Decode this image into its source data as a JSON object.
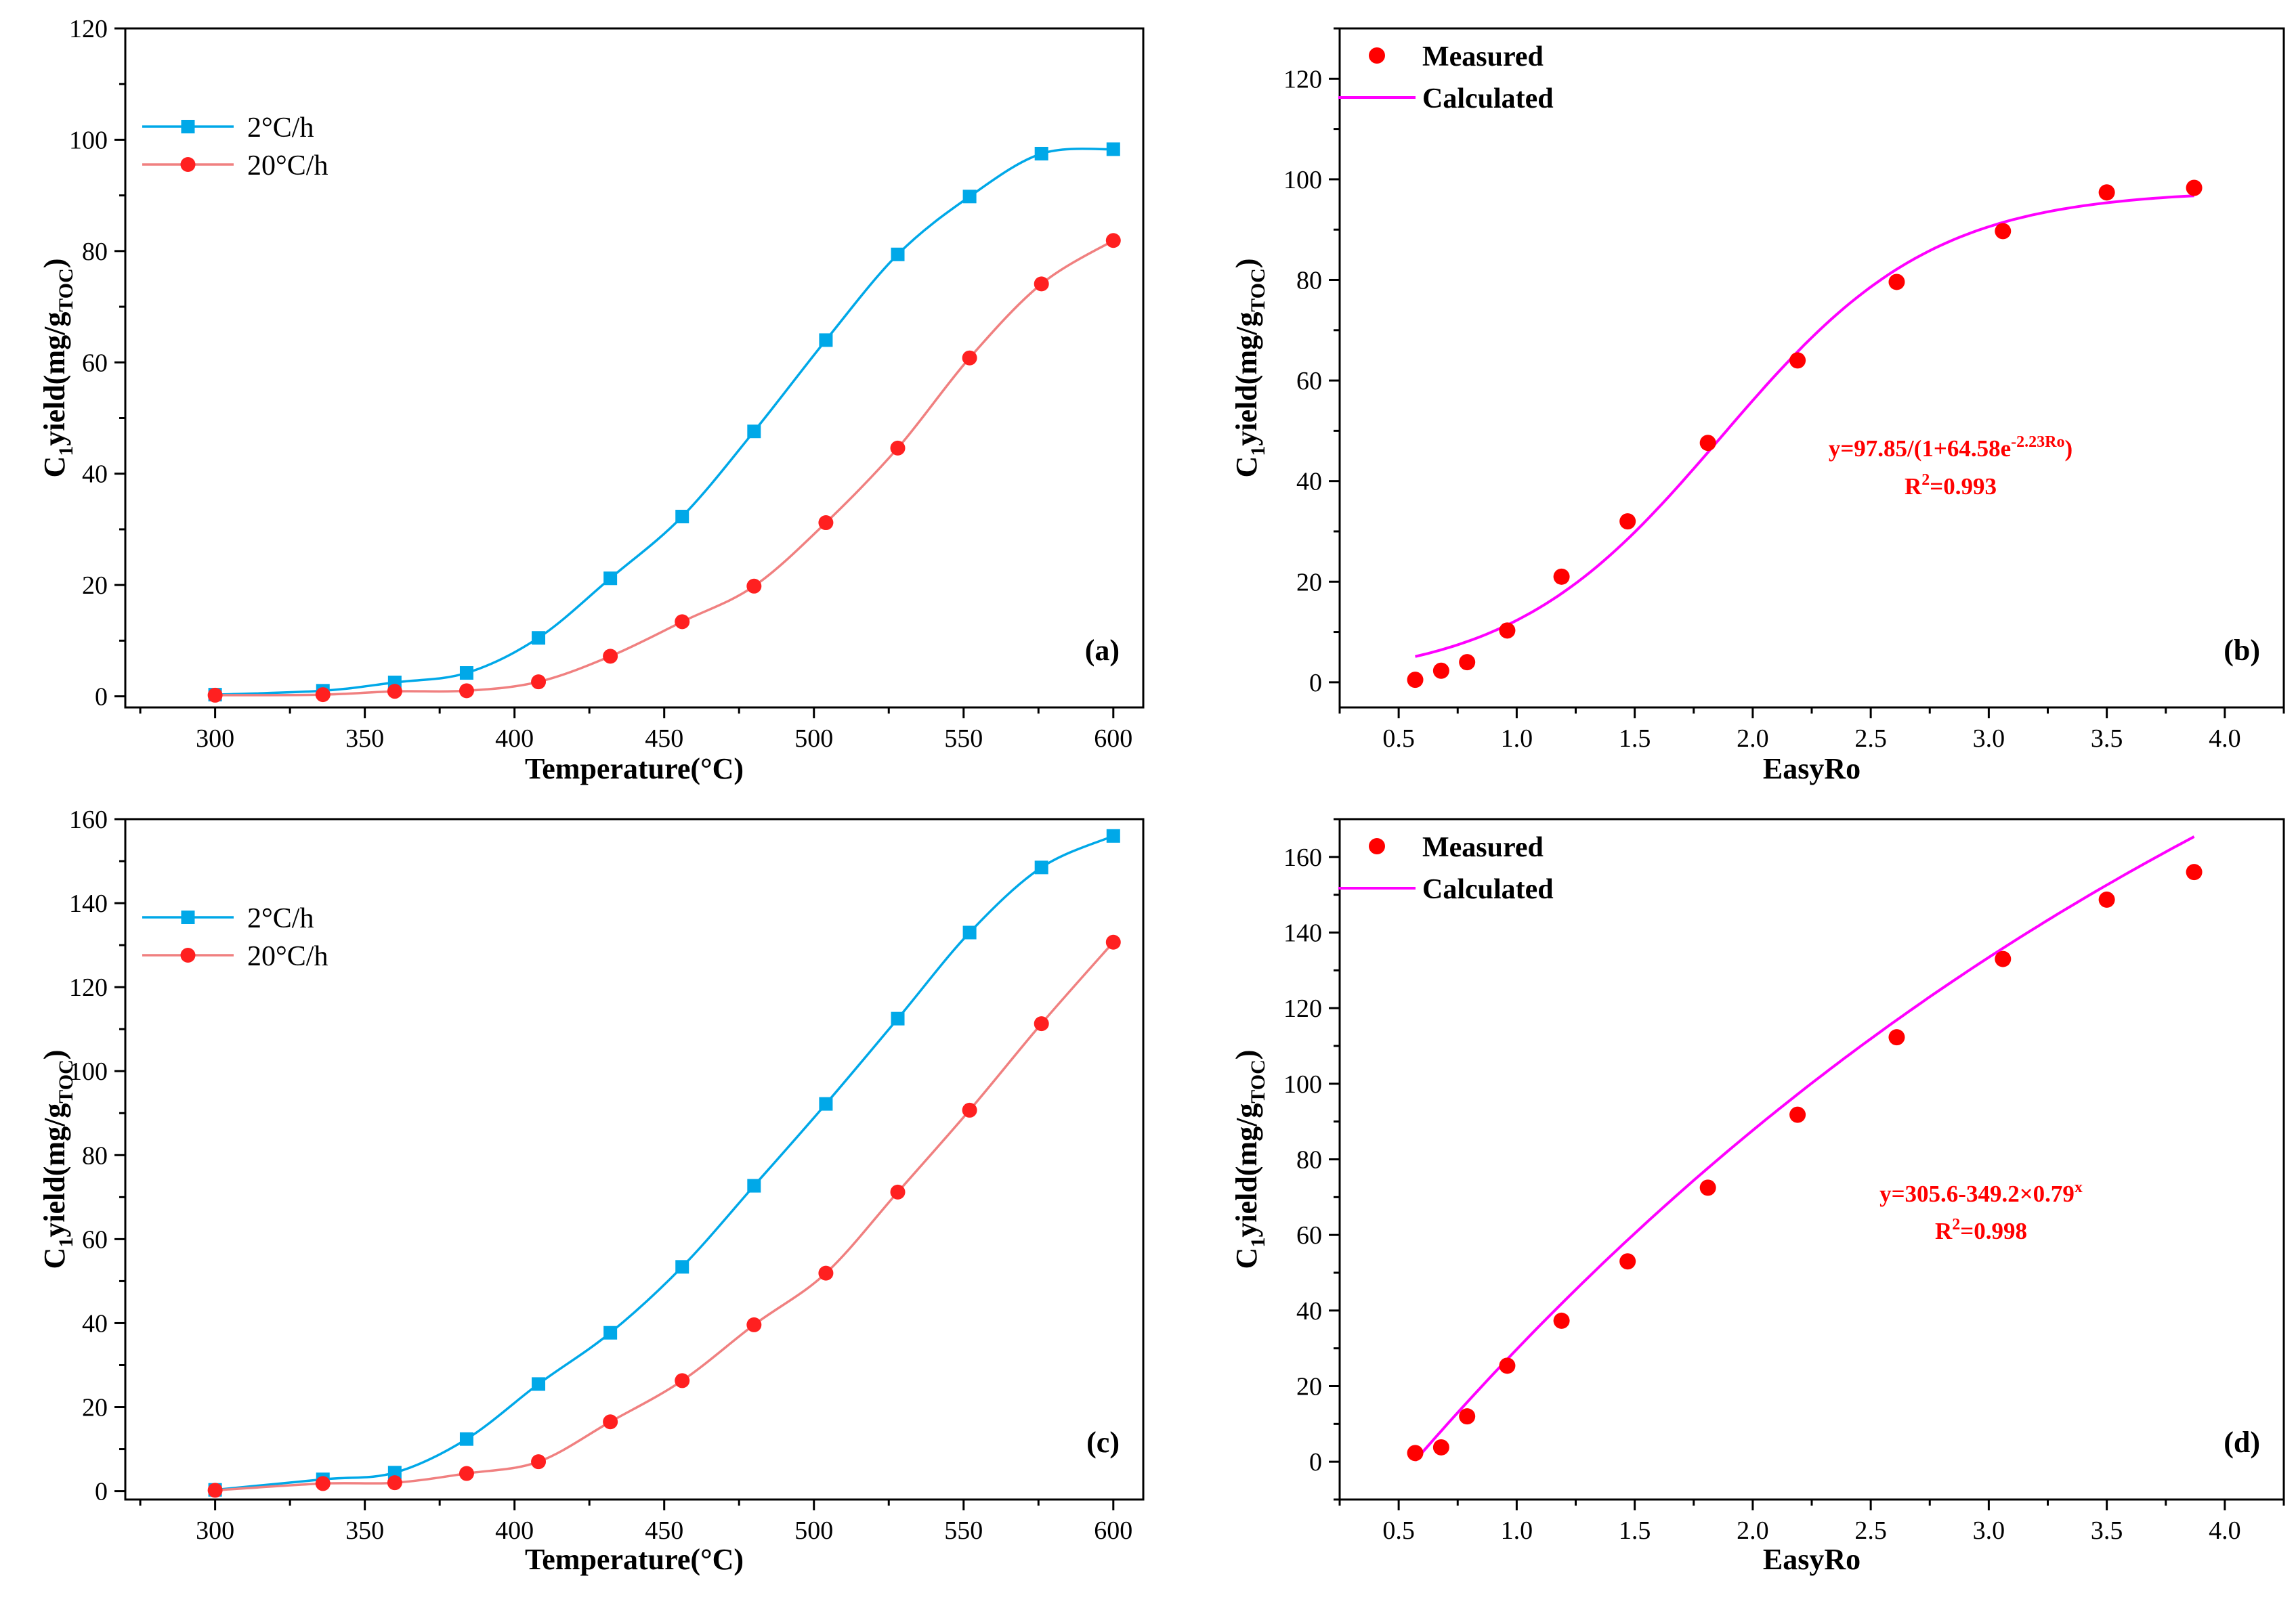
{
  "chart_data": [
    {
      "panel": "(a)",
      "type": "line",
      "xlabel": "Temperature(°C)",
      "ylabel": {
        "main": "C",
        "sub1": "1",
        "mid": "yield(mg/g",
        "sub2": "TOC",
        "end": ")"
      },
      "xlim": [
        270,
        610
      ],
      "ylim": [
        -2,
        120
      ],
      "xticks": [
        300,
        350,
        400,
        450,
        500,
        550,
        600
      ],
      "yticks": [
        0,
        20,
        40,
        60,
        80,
        100,
        120
      ],
      "legend_position": "top-left",
      "series": [
        {
          "name": "2°C/h",
          "color": "#00a8e8",
          "marker": "square",
          "x": [
            300,
            336,
            360,
            384,
            408,
            432,
            456,
            480,
            504,
            528,
            552,
            576,
            600
          ],
          "y": [
            0.3,
            1.0,
            2.5,
            4.2,
            10.5,
            21.2,
            32.3,
            47.6,
            64.0,
            79.4,
            89.8,
            97.5,
            98.3
          ]
        },
        {
          "name": "20°C/h",
          "color": "#ff2020",
          "line_color": "#f08080",
          "marker": "circle",
          "x": [
            300,
            336,
            360,
            384,
            408,
            432,
            456,
            480,
            504,
            528,
            552,
            576,
            600
          ],
          "y": [
            0.2,
            0.3,
            0.9,
            1.0,
            2.6,
            7.2,
            13.4,
            19.8,
            31.2,
            44.6,
            60.8,
            74.1,
            81.9
          ]
        }
      ]
    },
    {
      "panel": "(b)",
      "type": "scatter",
      "xlabel": "EasyRo",
      "ylabel": {
        "main": "C",
        "sub1": "1",
        "mid": "yield(mg/g",
        "sub2": "TOC",
        "end": ")"
      },
      "xlim": [
        0.25,
        4.25
      ],
      "ylim": [
        -5,
        130
      ],
      "xticks": [
        0.5,
        1.0,
        1.5,
        2.0,
        2.5,
        3.0,
        3.5,
        4.0
      ],
      "xtick_labels": [
        "0.5",
        "1.0",
        "1.5",
        "2.0",
        "2.5",
        "3.0",
        "3.5",
        "4.0"
      ],
      "yticks": [
        0,
        20,
        40,
        60,
        80,
        100,
        120
      ],
      "legend_position": "top-left",
      "measured": {
        "name": "Measured",
        "color": "#ff0000",
        "x": [
          0.57,
          0.68,
          0.79,
          0.96,
          1.19,
          1.47,
          1.81,
          2.19,
          2.61,
          3.06,
          3.5,
          3.87
        ],
        "y": [
          0.5,
          2.3,
          4.0,
          10.3,
          21.0,
          32.0,
          47.6,
          64.0,
          79.6,
          89.7,
          97.4,
          98.3
        ]
      },
      "fit": {
        "name": "Calculated",
        "color": "#ff00ff",
        "model": "logistic",
        "params": {
          "a": 97.85,
          "b": 64.58,
          "k": 2.23
        },
        "x_range": [
          0.57,
          3.87
        ]
      },
      "equation": {
        "text_main": "y=97.85/(1+64.58e",
        "text_sup": "-2.23Ro",
        "text_end": ")",
        "r2_prefix": "R",
        "r2_sup": "2",
        "r2_value": "=0.993"
      }
    },
    {
      "panel": "(c)",
      "type": "line",
      "xlabel": "Temperature(°C)",
      "ylabel": {
        "main": "C",
        "sub1": "1",
        "mid": "yield(mg/g",
        "sub2": "TOC",
        "end": ")"
      },
      "xlim": [
        270,
        610
      ],
      "ylim": [
        -2,
        160
      ],
      "xticks": [
        300,
        350,
        400,
        450,
        500,
        550,
        600
      ],
      "yticks": [
        0,
        20,
        40,
        60,
        80,
        100,
        120,
        140,
        160
      ],
      "legend_position": "top-left",
      "series": [
        {
          "name": "2°C/h",
          "color": "#00a8e8",
          "marker": "square",
          "x": [
            300,
            336,
            360,
            384,
            408,
            432,
            456,
            480,
            504,
            528,
            552,
            576,
            600
          ],
          "y": [
            0.3,
            2.8,
            4.4,
            12.4,
            25.5,
            37.7,
            53.4,
            72.7,
            92.2,
            112.5,
            133.0,
            148.5,
            156.0
          ]
        },
        {
          "name": "20°C/h",
          "color": "#ff2020",
          "line_color": "#f08080",
          "marker": "circle",
          "x": [
            300,
            336,
            360,
            384,
            408,
            432,
            456,
            480,
            504,
            528,
            552,
            576,
            600
          ],
          "y": [
            0.2,
            1.8,
            2.0,
            4.2,
            7.0,
            16.5,
            26.3,
            39.6,
            51.9,
            71.2,
            90.7,
            111.3,
            130.7
          ]
        }
      ]
    },
    {
      "panel": "(d)",
      "type": "scatter",
      "xlabel": "EasyRo",
      "ylabel": {
        "main": "C",
        "sub1": "1",
        "mid": "yield(mg/g",
        "sub2": "TOC",
        "end": ")"
      },
      "xlim": [
        0.25,
        4.25
      ],
      "ylim": [
        -10,
        170
      ],
      "xticks": [
        0.5,
        1.0,
        1.5,
        2.0,
        2.5,
        3.0,
        3.5,
        4.0
      ],
      "xtick_labels": [
        "0.5",
        "1.0",
        "1.5",
        "2.0",
        "2.5",
        "3.0",
        "3.5",
        "4.0"
      ],
      "yticks": [
        0,
        20,
        40,
        60,
        80,
        100,
        120,
        140,
        160
      ],
      "legend_position": "top-left",
      "measured": {
        "name": "Measured",
        "color": "#ff0000",
        "x": [
          0.57,
          0.68,
          0.79,
          0.96,
          1.19,
          1.47,
          1.81,
          2.19,
          2.61,
          3.06,
          3.5,
          3.87
        ],
        "y": [
          2.3,
          3.8,
          12.0,
          25.4,
          37.3,
          53.0,
          72.5,
          91.8,
          112.3,
          133.0,
          148.7,
          156.0
        ]
      },
      "fit": {
        "name": "Calculated",
        "color": "#ff00ff",
        "model": "exponential",
        "params": {
          "a": 305.6,
          "b": 349.2,
          "c": 0.79
        },
        "x_range": [
          0.57,
          3.87
        ]
      },
      "equation": {
        "text_main": "y=305.6-349.2×0.79",
        "text_sup": "x",
        "text_end": "",
        "r2_prefix": "R",
        "r2_sup": "2",
        "r2_value": "=0.998"
      }
    }
  ]
}
